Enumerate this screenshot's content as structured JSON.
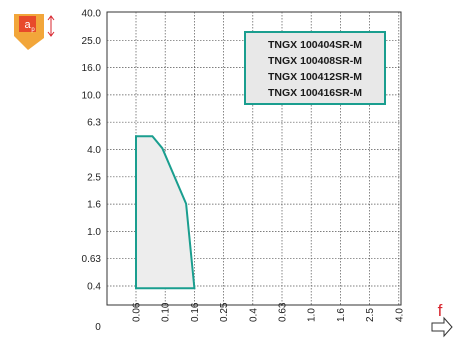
{
  "chart_data": {
    "type": "area",
    "title": "",
    "xlabel": "f",
    "ylabel": "ap",
    "x_ticks": [
      "0.06",
      "0.10",
      "0.16",
      "0.25",
      "0.4",
      "0.63",
      "1.0",
      "1.6",
      "2.5",
      "4.0"
    ],
    "y_ticks": [
      "40.0",
      "25.0",
      "16.0",
      "10.0",
      "6.3",
      "4.0",
      "2.5",
      "1.6",
      "1.0",
      "0.63",
      "0.4"
    ],
    "origin_label": "0",
    "grid": true,
    "legend_position": "top-right",
    "legend": [
      "TNGX 100404SR-M",
      "TNGX 100408SR-M",
      "TNGX 100412SR-M",
      "TNGX 100416SR-M"
    ],
    "series": [
      {
        "name": "TNGX 100404SR-M / TNGX 100408SR-M / TNGX 100412SR-M / TNGX 100416SR-M",
        "points": [
          {
            "x": 0.06,
            "y": 0.35
          },
          {
            "x": 0.06,
            "y": 4.8
          },
          {
            "x": 0.08,
            "y": 4.8
          },
          {
            "x": 0.095,
            "y": 3.9
          },
          {
            "x": 0.14,
            "y": 1.5
          },
          {
            "x": 0.16,
            "y": 0.35
          }
        ]
      }
    ],
    "colors": {
      "region_fill": "#ededed",
      "region_stroke": "#1a9e8f",
      "legend_bg": "#e8e8e8"
    }
  },
  "icons": {
    "insert": "insert-depth-of-cut-icon",
    "feed_arrow": "right-arrow-icon"
  }
}
